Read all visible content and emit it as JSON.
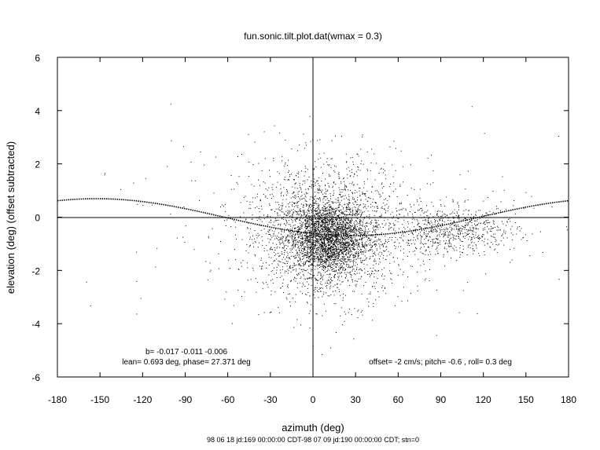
{
  "chart_data": {
    "type": "scatter",
    "title": "fun.sonic.tilt.plot.dat(wmax = 0.3)",
    "xlabel": "azimuth (deg)",
    "ylabel": "elevation (deg)  (offset subtracted)",
    "footer": "98 06 18 jd:169 00:00:00 CDT-98 07 09 jd:190 00:00:00 CDT; stn=0",
    "xlim": [
      -180,
      180
    ],
    "ylim": [
      -6,
      6
    ],
    "xticks": [
      -180,
      -150,
      -120,
      -90,
      -60,
      -30,
      0,
      30,
      60,
      90,
      120,
      150,
      180
    ],
    "yticks": [
      -6,
      -4,
      -2,
      0,
      2,
      4,
      6
    ],
    "grid": false,
    "zero_axes": true,
    "annotations": {
      "fit_coeffs": "b= -0.017 -0.011 -0.006",
      "lean_phase": "lean= 0.693 deg, phase= 27.371 deg",
      "offsets": "offset= -2 cm/s; pitch= -0.6 , roll=  0.3 deg"
    },
    "fit_curve": {
      "lean_deg": 0.693,
      "phase_deg": 27.371,
      "description": "elevation = -lean * cos(azimuth - phase)"
    },
    "scatter_clusters": [
      {
        "x_center": 10,
        "y_center": -0.8,
        "x_spread": 14,
        "y_spread": 0.7,
        "count": 2600
      },
      {
        "x_center": 10,
        "y_center": -0.5,
        "x_spread": 30,
        "y_spread": 1.3,
        "count": 2000
      },
      {
        "x_center": 100,
        "y_center": -0.5,
        "x_spread": 22,
        "y_spread": 0.45,
        "count": 700
      },
      {
        "x_center": 0,
        "y_center": 0,
        "x_spread": 90,
        "y_spread": 1.8,
        "count": 200
      }
    ],
    "colors": {
      "points": "#000000",
      "axes": "#000000",
      "background": "#ffffff"
    }
  }
}
